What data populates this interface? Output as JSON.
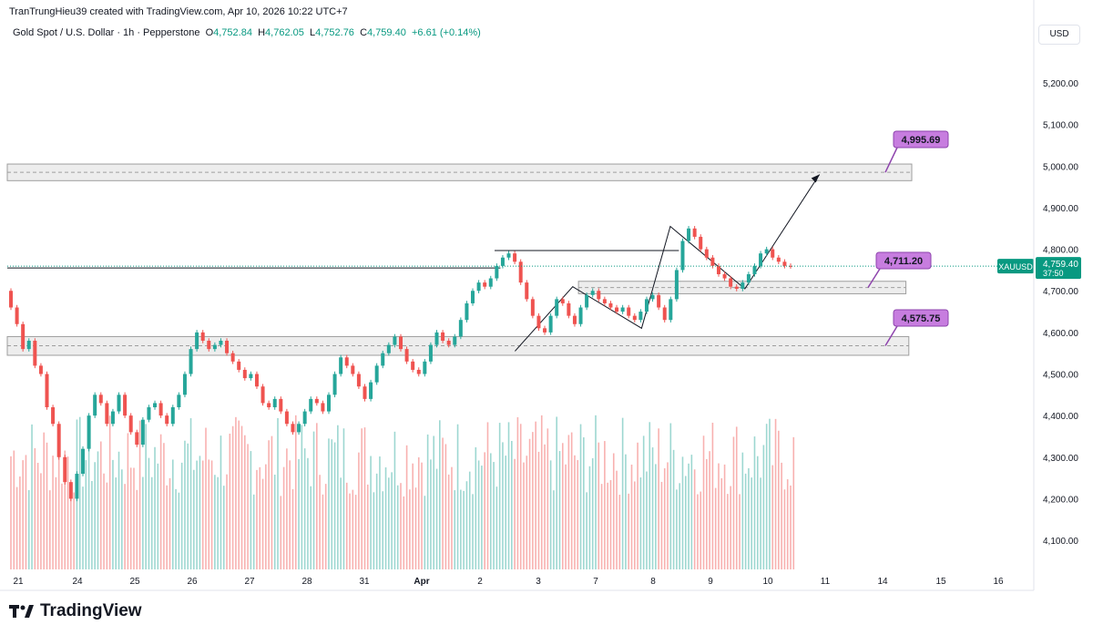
{
  "header": {
    "credit": "TranTrungHieu39 created with TradingView.com, Apr 10, 2026 10:22 UTC+7",
    "symbol_title": "Gold Spot / U.S. Dollar · 1h · Pepperstone",
    "ohlc": {
      "o_label": "O",
      "o_value": "4,752.84",
      "h_label": "H",
      "h_value": "4,762.05",
      "l_label": "L",
      "l_value": "4,752.76",
      "c_label": "C",
      "c_value": "4,759.40",
      "change": "+6.61 (+0.14%)"
    },
    "currency": "USD"
  },
  "brand": {
    "name": "TradingView"
  },
  "colors": {
    "up": "#26a69a",
    "down": "#ef5350",
    "zone": "#e8e8e8",
    "label_bg": "#c77ddf",
    "last_price_bg": "#089981"
  },
  "chart_data": {
    "type": "candlestick",
    "symbol": "XAUUSD",
    "timeframe": "1h",
    "ylim": [
      4030,
      5290
    ],
    "y_ticks": [
      4100,
      4200,
      4300,
      4400,
      4500,
      4600,
      4700,
      4800,
      4900,
      5000,
      5100,
      5200
    ],
    "y_tick_labels": [
      "4,100.00",
      "4,200.00",
      "4,300.00",
      "4,400.00",
      "4,500.00",
      "4,600.00",
      "4,700.00",
      "4,800.00",
      "4,900.00",
      "5,000.00",
      "5,100.00",
      "5,200.00"
    ],
    "x_ticks": [
      "21",
      "24",
      "25",
      "26",
      "27",
      "28",
      "31",
      "Apr",
      "2",
      "3",
      "7",
      "8",
      "9",
      "10",
      "11",
      "14",
      "15",
      "16"
    ],
    "last_price": {
      "symbol_label": "XAUUSD",
      "price_label": "4,759.40",
      "countdown": "37:50",
      "value": 4759.4
    },
    "zones": [
      {
        "low": 4965,
        "high": 5005,
        "mid": 4985,
        "end_day": 15.5
      },
      {
        "low": 4693,
        "high": 4723,
        "mid": 4708,
        "start_day": 9.7,
        "end_day": 15.4
      },
      {
        "low": 4545,
        "high": 4590,
        "mid": 4568,
        "end_day": 15.45
      }
    ],
    "price_labels": [
      {
        "text": "4,995.69",
        "value": 4995.69
      },
      {
        "text": "4,711.20",
        "value": 4711.2
      },
      {
        "text": "4,575.75",
        "value": 4575.75
      }
    ],
    "lines": [
      {
        "points": [
          [
            0.0,
            4755
          ],
          [
            8.35,
            4755
          ]
        ]
      },
      {
        "points": [
          [
            8.25,
            4797
          ],
          [
            11.45,
            4797
          ]
        ]
      }
    ],
    "pattern": {
      "points": [
        [
          8.6,
          4555
        ],
        [
          9.6,
          4710
        ],
        [
          10.8,
          4610
        ],
        [
          11.3,
          4855
        ],
        [
          12.6,
          4705
        ],
        [
          13.9,
          4980
        ]
      ]
    },
    "arrow_tip": [
      13.9,
      4980
    ],
    "candles": [
      [
        4700,
        4660
      ],
      [
        4660,
        4620
      ],
      [
        4620,
        4560
      ],
      [
        4560,
        4580
      ],
      [
        4580,
        4520
      ],
      [
        4520,
        4500
      ],
      [
        4500,
        4420
      ],
      [
        4420,
        4380
      ],
      [
        4380,
        4300
      ],
      [
        4300,
        4240
      ],
      [
        4240,
        4200
      ],
      [
        4200,
        4260
      ],
      [
        4260,
        4320
      ],
      [
        4320,
        4400
      ],
      [
        4400,
        4450
      ],
      [
        4450,
        4430
      ],
      [
        4430,
        4380
      ],
      [
        4380,
        4410
      ],
      [
        4410,
        4450
      ],
      [
        4450,
        4400
      ],
      [
        4400,
        4360
      ],
      [
        4360,
        4330
      ],
      [
        4330,
        4390
      ],
      [
        4390,
        4420
      ],
      [
        4420,
        4430
      ],
      [
        4430,
        4400
      ],
      [
        4400,
        4380
      ],
      [
        4380,
        4420
      ],
      [
        4420,
        4450
      ],
      [
        4450,
        4500
      ],
      [
        4500,
        4560
      ],
      [
        4560,
        4600
      ],
      [
        4600,
        4580
      ],
      [
        4580,
        4560
      ],
      [
        4560,
        4570
      ],
      [
        4570,
        4580
      ],
      [
        4580,
        4550
      ],
      [
        4550,
        4530
      ],
      [
        4530,
        4510
      ],
      [
        4510,
        4490
      ],
      [
        4490,
        4500
      ],
      [
        4500,
        4470
      ],
      [
        4470,
        4430
      ],
      [
        4430,
        4420
      ],
      [
        4420,
        4440
      ],
      [
        4440,
        4410
      ],
      [
        4410,
        4380
      ],
      [
        4380,
        4360
      ],
      [
        4360,
        4380
      ],
      [
        4380,
        4410
      ],
      [
        4410,
        4440
      ],
      [
        4440,
        4430
      ],
      [
        4430,
        4410
      ],
      [
        4410,
        4450
      ],
      [
        4450,
        4500
      ],
      [
        4500,
        4540
      ],
      [
        4540,
        4520
      ],
      [
        4520,
        4500
      ],
      [
        4500,
        4470
      ],
      [
        4470,
        4440
      ],
      [
        4440,
        4480
      ],
      [
        4480,
        4520
      ],
      [
        4520,
        4550
      ],
      [
        4550,
        4570
      ],
      [
        4570,
        4590
      ],
      [
        4590,
        4560
      ],
      [
        4560,
        4530
      ],
      [
        4530,
        4510
      ],
      [
        4510,
        4500
      ],
      [
        4500,
        4530
      ],
      [
        4530,
        4570
      ],
      [
        4570,
        4600
      ],
      [
        4600,
        4580
      ],
      [
        4580,
        4570
      ],
      [
        4570,
        4590
      ],
      [
        4590,
        4630
      ],
      [
        4630,
        4670
      ],
      [
        4670,
        4700
      ],
      [
        4700,
        4720
      ],
      [
        4720,
        4710
      ],
      [
        4710,
        4730
      ],
      [
        4730,
        4760
      ],
      [
        4760,
        4780
      ],
      [
        4780,
        4790
      ],
      [
        4790,
        4770
      ],
      [
        4770,
        4720
      ],
      [
        4720,
        4680
      ],
      [
        4680,
        4640
      ],
      [
        4640,
        4610
      ],
      [
        4610,
        4600
      ],
      [
        4600,
        4640
      ],
      [
        4640,
        4680
      ],
      [
        4680,
        4670
      ],
      [
        4670,
        4640
      ],
      [
        4640,
        4620
      ],
      [
        4620,
        4660
      ],
      [
        4660,
        4690
      ],
      [
        4690,
        4700
      ],
      [
        4700,
        4680
      ],
      [
        4680,
        4670
      ],
      [
        4670,
        4660
      ],
      [
        4660,
        4650
      ],
      [
        4650,
        4660
      ],
      [
        4660,
        4640
      ],
      [
        4640,
        4630
      ],
      [
        4630,
        4650
      ],
      [
        4650,
        4680
      ],
      [
        4680,
        4690
      ],
      [
        4690,
        4660
      ],
      [
        4660,
        4630
      ],
      [
        4630,
        4680
      ],
      [
        4680,
        4750
      ],
      [
        4750,
        4820
      ],
      [
        4820,
        4850
      ],
      [
        4850,
        4830
      ],
      [
        4830,
        4800
      ],
      [
        4800,
        4780
      ],
      [
        4780,
        4760
      ],
      [
        4760,
        4740
      ],
      [
        4740,
        4730
      ],
      [
        4730,
        4710
      ],
      [
        4710,
        4705
      ],
      [
        4705,
        4720
      ],
      [
        4720,
        4740
      ],
      [
        4740,
        4760
      ],
      [
        4760,
        4790
      ],
      [
        4790,
        4800
      ],
      [
        4800,
        4780
      ],
      [
        4780,
        4770
      ],
      [
        4770,
        4760
      ],
      [
        4760,
        4759.4
      ]
    ]
  }
}
